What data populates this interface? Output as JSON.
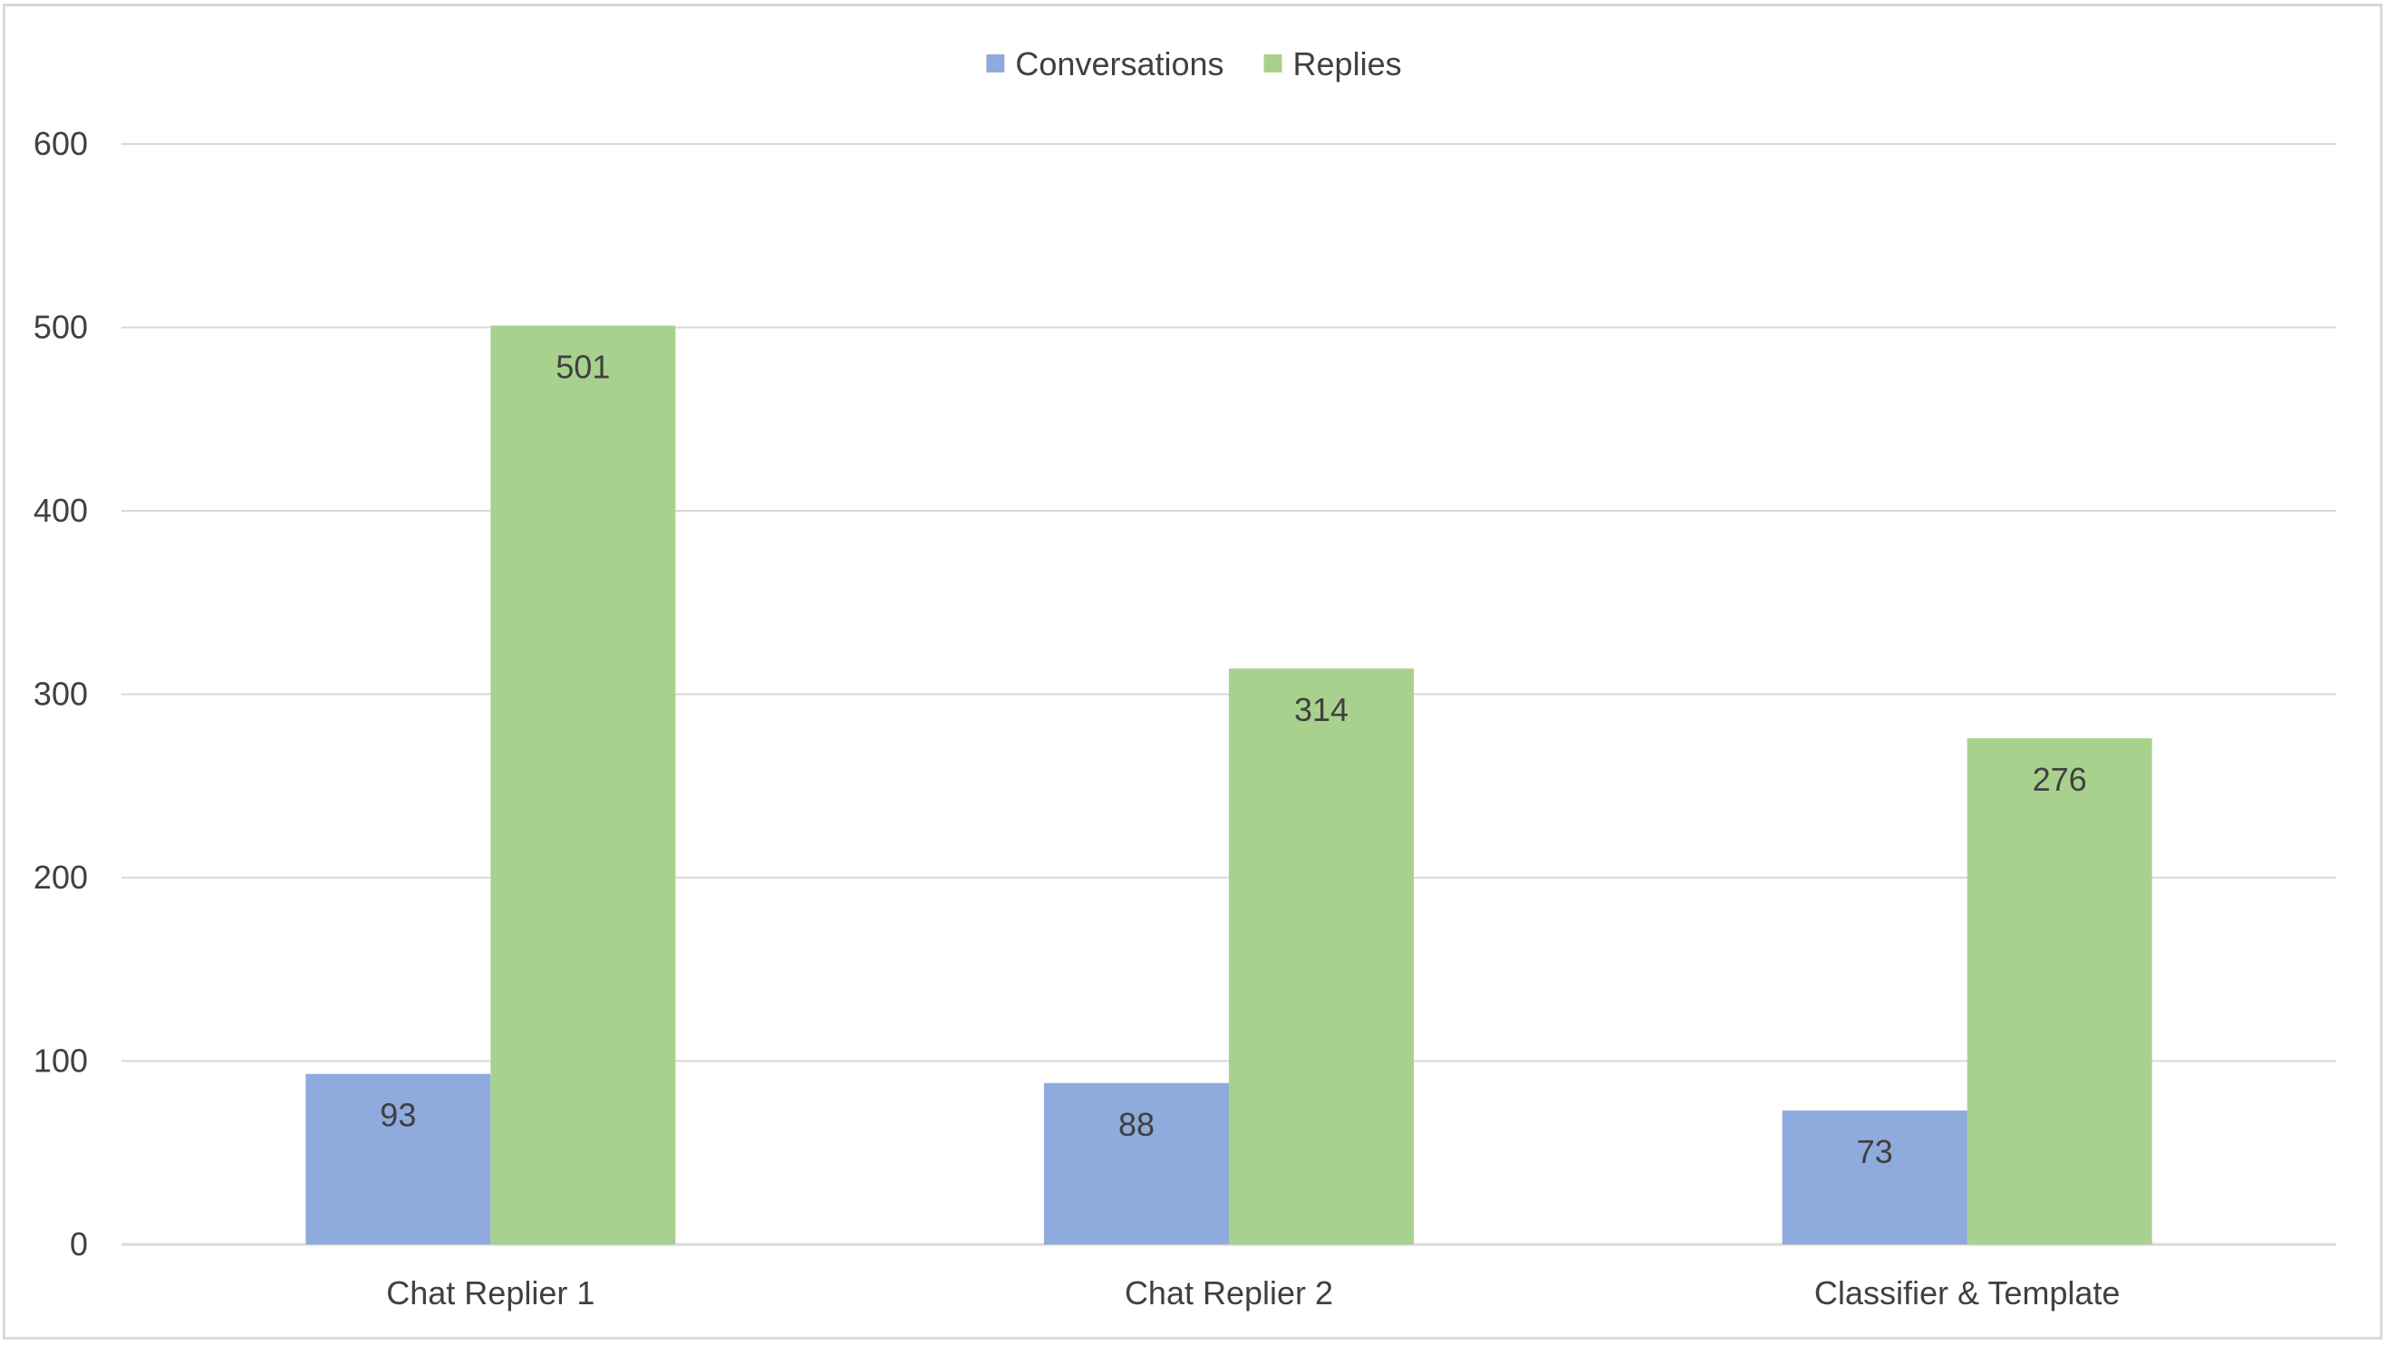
{
  "chart_data": {
    "type": "bar",
    "categories": [
      "Chat Replier 1",
      "Chat Replier 2",
      "Classifier & Template"
    ],
    "series": [
      {
        "name": "Conversations",
        "values": [
          93,
          88,
          73
        ],
        "color": "#8faadc"
      },
      {
        "name": "Replies",
        "values": [
          501,
          314,
          276
        ],
        "color": "#a9d18e"
      }
    ],
    "title": "",
    "xlabel": "",
    "ylabel": "",
    "ylim": [
      0,
      600
    ],
    "yticks": [
      0,
      100,
      200,
      300,
      400,
      500,
      600
    ],
    "grid": true,
    "legend": "top-center",
    "data_labels": true,
    "gridline_color": "#d9d9d9",
    "text_color": "#404040"
  }
}
